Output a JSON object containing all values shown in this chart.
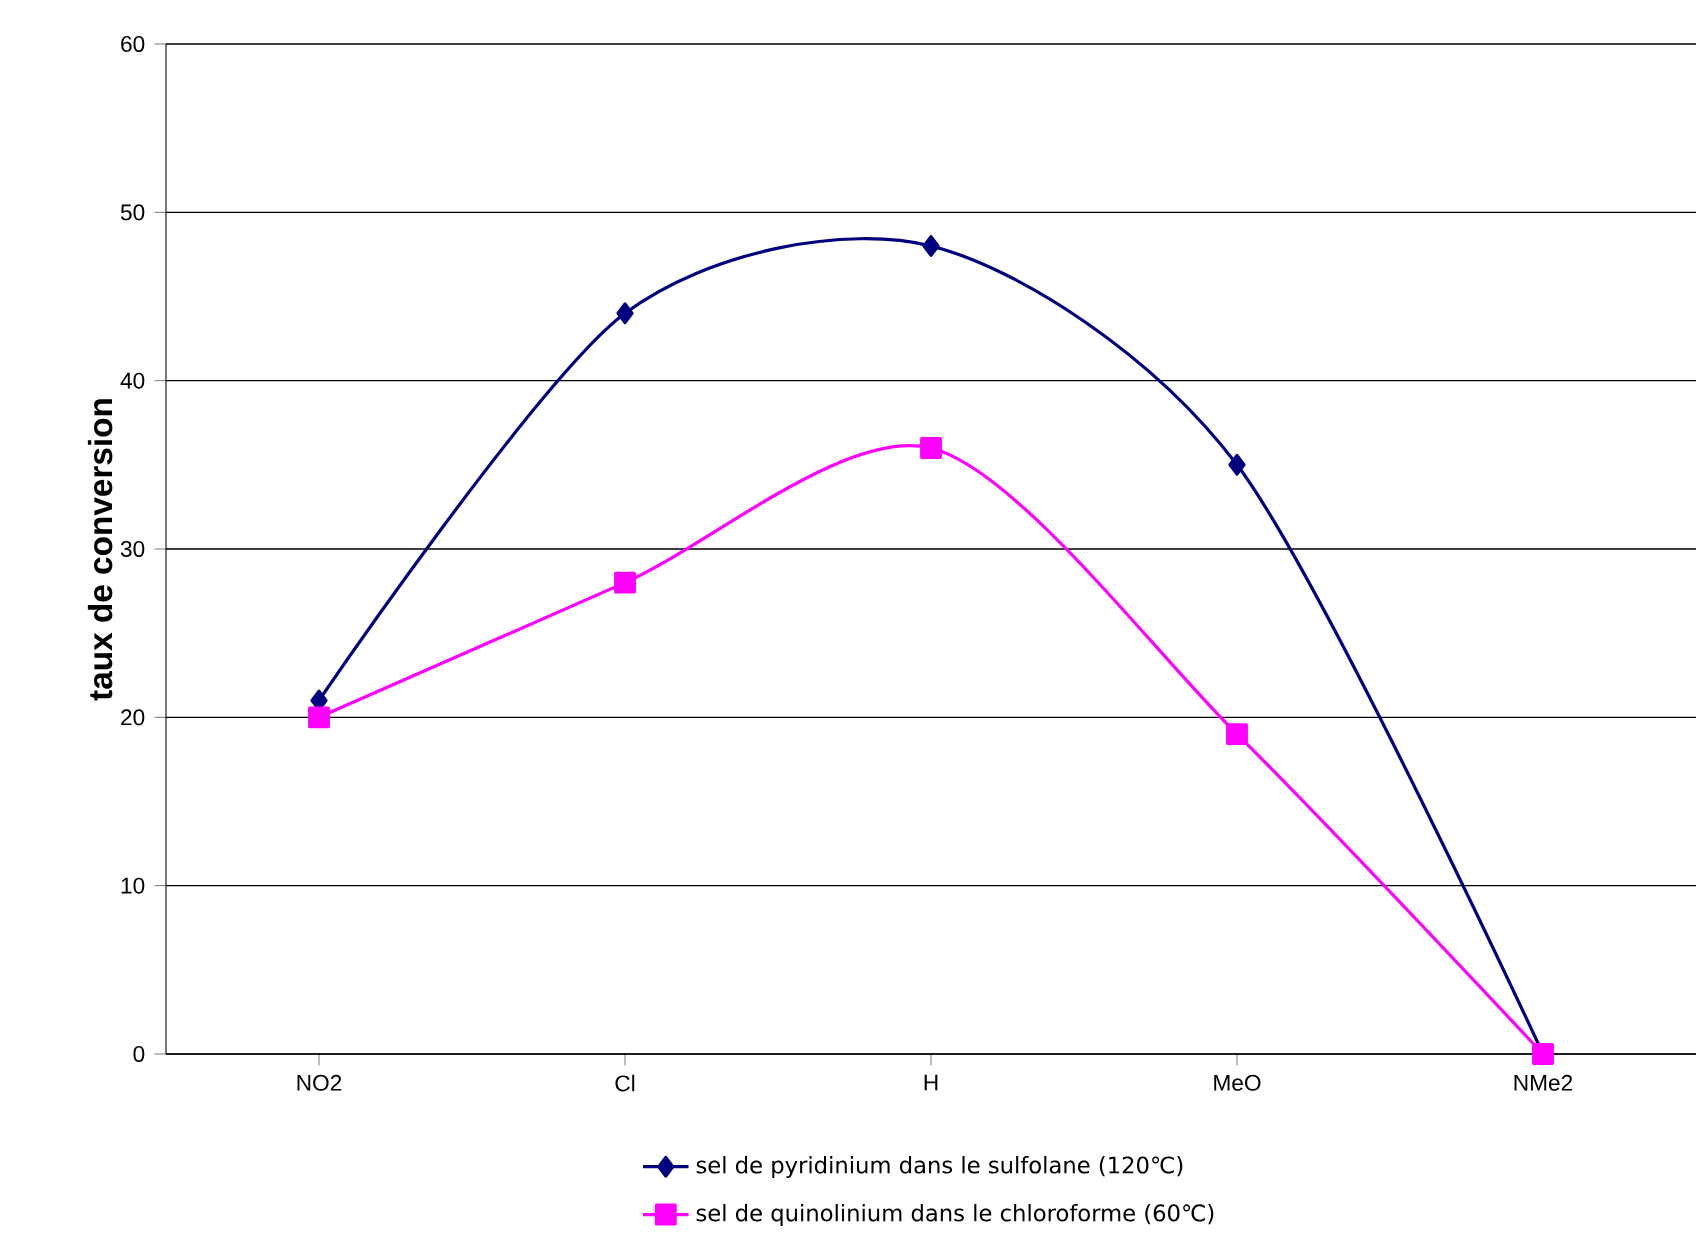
{
  "chart_data": {
    "type": "line",
    "ylabel": "taux de conversion",
    "categories": [
      "NO2",
      "Cl",
      "H",
      "MeO",
      "NMe2"
    ],
    "series": [
      {
        "name": "sel de pyridinium dans le sulfolane (120℃)",
        "color": "#000080",
        "marker": "diamond",
        "values": [
          21,
          44,
          48,
          35,
          0
        ]
      },
      {
        "name": "sel de quinolinium dans le chloroforme (60℃)",
        "color": "#ff00ff",
        "marker": "square",
        "values": [
          20,
          28,
          36,
          19,
          0
        ]
      }
    ],
    "ylim": [
      0,
      60
    ],
    "yticks": [
      0,
      10,
      20,
      30,
      40,
      50,
      60
    ],
    "grid": "y",
    "legend": "bottom",
    "line_style": "solid"
  }
}
